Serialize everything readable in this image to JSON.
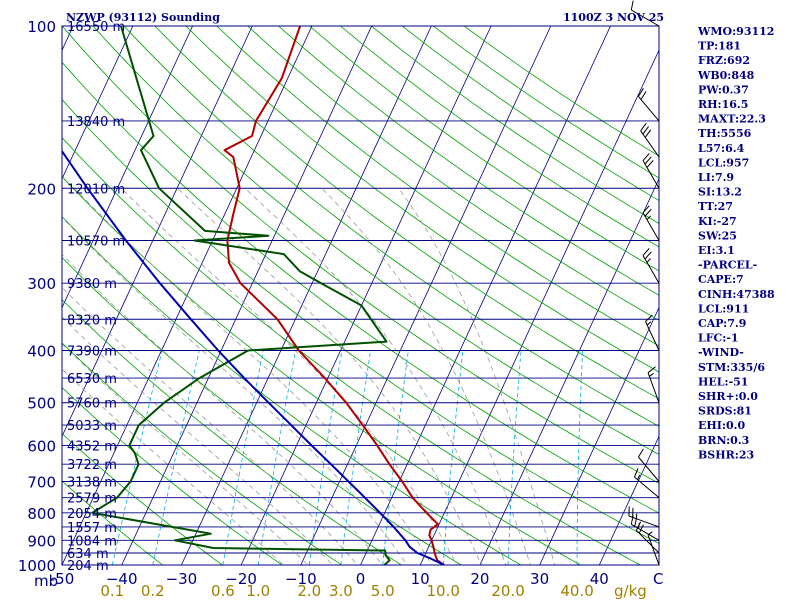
{
  "header": {
    "title": "NZWP (93112) Sounding",
    "datetime": "1100Z  3 NOV 25"
  },
  "indices": [
    "WMO:93112",
    "TP:181",
    "FRZ:692",
    "WB0:848",
    "PW:0.37",
    "RH:16.5",
    "MAXT:22.3",
    "TH:5556",
    "L57:6.4",
    "LCL:957",
    "LI:7.9",
    "SI:13.2",
    "TT:27",
    "KI:-27",
    "SW:25",
    "EI:3.1",
    "-PARCEL-",
    "CAPE:7",
    "CINH:47388",
    "LCL:911",
    "CAP:7.9",
    "LFC:-1",
    "-WIND-",
    "STM:335/6",
    "HEL:-51",
    "SHR+:0.0",
    "SRDS:81",
    "EHI:0.0",
    "BRN:0.3",
    "BSHR:23"
  ],
  "axes": {
    "pressure_unit": "mb",
    "mixing_unit": "g/kg",
    "temp_end_label": "C"
  },
  "colors": {
    "border": "#000080",
    "isobar": "#000080",
    "isotherm": "#000080",
    "dry_adiabat": "#00a000",
    "moist_adiabat": "#9a9a9a",
    "mixing_ratio": "#00b0e0",
    "temperature": "#b00000",
    "dewpoint": "#005000",
    "parcel": "#0000b0",
    "wind_barb": "#000000"
  },
  "chart_data": {
    "type": "line",
    "title": "NZWP (93112) Sounding",
    "xlabel": "",
    "ylabel": "mb",
    "temperature_range_C": [
      -50,
      50
    ],
    "pressure_range_mb": [
      1000,
      100
    ],
    "log_pressure": true,
    "skew_T": true,
    "grid": true,
    "pressure_ticks": [
      100,
      200,
      300,
      400,
      500,
      600,
      700,
      800,
      900,
      1000
    ],
    "pressure_tick_labels": [
      "100",
      "200",
      "300",
      "400",
      "500",
      "600",
      "700",
      "800",
      "900",
      "1000"
    ],
    "temperature_ticks": [
      -50,
      -40,
      -30,
      -20,
      -10,
      0,
      10,
      20,
      30,
      40
    ],
    "temperature_tick_labels": [
      "-50",
      "−40",
      "−30",
      "−20",
      "−10",
      "0",
      "10",
      "20",
      "30",
      "40"
    ],
    "height_labels": [
      {
        "p": 1000,
        "label": "204 m"
      },
      {
        "p": 950,
        "label": "634 m"
      },
      {
        "p": 900,
        "label": "1084 m"
      },
      {
        "p": 850,
        "label": "1557 m"
      },
      {
        "p": 800,
        "label": "2054 m"
      },
      {
        "p": 750,
        "label": "2579 m"
      },
      {
        "p": 700,
        "label": "3138 m"
      },
      {
        "p": 650,
        "label": "3722 m"
      },
      {
        "p": 600,
        "label": "4352 m"
      },
      {
        "p": 550,
        "label": "5033 m"
      },
      {
        "p": 500,
        "label": "5760 m"
      },
      {
        "p": 450,
        "label": "6530 m"
      },
      {
        "p": 400,
        "label": "7390 m"
      },
      {
        "p": 350,
        "label": "8320 m"
      },
      {
        "p": 300,
        "label": "9380 m"
      },
      {
        "p": 250,
        "label": "10570 m"
      },
      {
        "p": 200,
        "label": "12010 m"
      },
      {
        "p": 150,
        "label": "13840 m"
      },
      {
        "p": 100,
        "label": "16550 m"
      }
    ],
    "mixing_ratio_values": [
      0.1,
      0.2,
      0.6,
      1.0,
      2.0,
      3.0,
      5.0,
      10.0,
      20.0,
      40.0
    ],
    "mixing_ratio_labels": [
      "0.1",
      "0.2",
      "0.6",
      "1.0",
      "2.0",
      "3.0",
      "5.0",
      "10.0",
      "20.0",
      "40.0"
    ],
    "series": [
      {
        "key": "temperature",
        "points": [
          [
            1000,
            14
          ],
          [
            980,
            12.5
          ],
          [
            960,
            11.8
          ],
          [
            940,
            11.2
          ],
          [
            925,
            10.8
          ],
          [
            900,
            10.0
          ],
          [
            880,
            9.2
          ],
          [
            860,
            9.0
          ],
          [
            840,
            9.8
          ],
          [
            800,
            7.0
          ],
          [
            750,
            3.5
          ],
          [
            700,
            0.5
          ],
          [
            650,
            -3.0
          ],
          [
            600,
            -6.5
          ],
          [
            550,
            -10.5
          ],
          [
            500,
            -15.0
          ],
          [
            450,
            -20.5
          ],
          [
            400,
            -27.0
          ],
          [
            350,
            -33.0
          ],
          [
            300,
            -42.0
          ],
          [
            275,
            -45.5
          ],
          [
            250,
            -47.5
          ],
          [
            225,
            -48.5
          ],
          [
            200,
            -49.5
          ],
          [
            175,
            -53.0
          ],
          [
            170,
            -55.0
          ],
          [
            160,
            -51.5
          ],
          [
            150,
            -52.0
          ],
          [
            125,
            -51.0
          ],
          [
            100,
            -52.0
          ]
        ]
      },
      {
        "key": "dewpoint",
        "points": [
          [
            1000,
            4
          ],
          [
            980,
            4.5
          ],
          [
            960,
            3.5
          ],
          [
            940,
            3.0
          ],
          [
            930,
            -26
          ],
          [
            900,
            -33
          ],
          [
            875,
            -27.5
          ],
          [
            800,
            -49
          ],
          [
            750,
            -46
          ],
          [
            700,
            -45
          ],
          [
            650,
            -45
          ],
          [
            620,
            -46.5
          ],
          [
            600,
            -48
          ],
          [
            550,
            -48
          ],
          [
            500,
            -45.5
          ],
          [
            450,
            -41.5
          ],
          [
            400,
            -35.5
          ],
          [
            385,
            -13
          ],
          [
            330,
            -20
          ],
          [
            300,
            -28.5
          ],
          [
            285,
            -33
          ],
          [
            265,
            -37
          ],
          [
            250,
            -53
          ],
          [
            245,
            -41
          ],
          [
            240,
            -52
          ],
          [
            200,
            -63
          ],
          [
            170,
            -69
          ],
          [
            160,
            -68
          ],
          [
            100,
            -82
          ]
        ]
      },
      {
        "key": "parcel",
        "points": [
          [
            1000,
            14
          ],
          [
            975,
            11.5
          ],
          [
            950,
            8.6
          ],
          [
            925,
            6.8
          ],
          [
            900,
            5.6
          ],
          [
            850,
            2.6
          ],
          [
            800,
            -0.8
          ],
          [
            750,
            -4.5
          ],
          [
            700,
            -8.5
          ],
          [
            650,
            -12.8
          ],
          [
            600,
            -17.5
          ],
          [
            550,
            -22.5
          ],
          [
            500,
            -28.0
          ],
          [
            450,
            -34.0
          ],
          [
            400,
            -40.5
          ],
          [
            350,
            -47.5
          ],
          [
            300,
            -55.5
          ],
          [
            250,
            -64.5
          ],
          [
            200,
            -75.0
          ],
          [
            150,
            -88.0
          ],
          [
            120,
            -97.0
          ]
        ]
      }
    ],
    "wind_barbs": [
      {
        "p": 1000,
        "dir": 340,
        "kt": 5
      },
      {
        "p": 950,
        "dir": 315,
        "kt": 20
      },
      {
        "p": 900,
        "dir": 300,
        "kt": 25
      },
      {
        "p": 850,
        "dir": 290,
        "kt": 25
      },
      {
        "p": 750,
        "dir": 310,
        "kt": 15
      },
      {
        "p": 700,
        "dir": 320,
        "kt": 10
      },
      {
        "p": 500,
        "dir": 340,
        "kt": 15
      },
      {
        "p": 400,
        "dir": 335,
        "kt": 15
      },
      {
        "p": 300,
        "dir": 330,
        "kt": 25
      },
      {
        "p": 250,
        "dir": 330,
        "kt": 25
      },
      {
        "p": 200,
        "dir": 330,
        "kt": 30
      },
      {
        "p": 175,
        "dir": 325,
        "kt": 30
      },
      {
        "p": 150,
        "dir": 320,
        "kt": 20
      },
      {
        "p": 100,
        "dir": 300,
        "kt": 10
      }
    ]
  }
}
